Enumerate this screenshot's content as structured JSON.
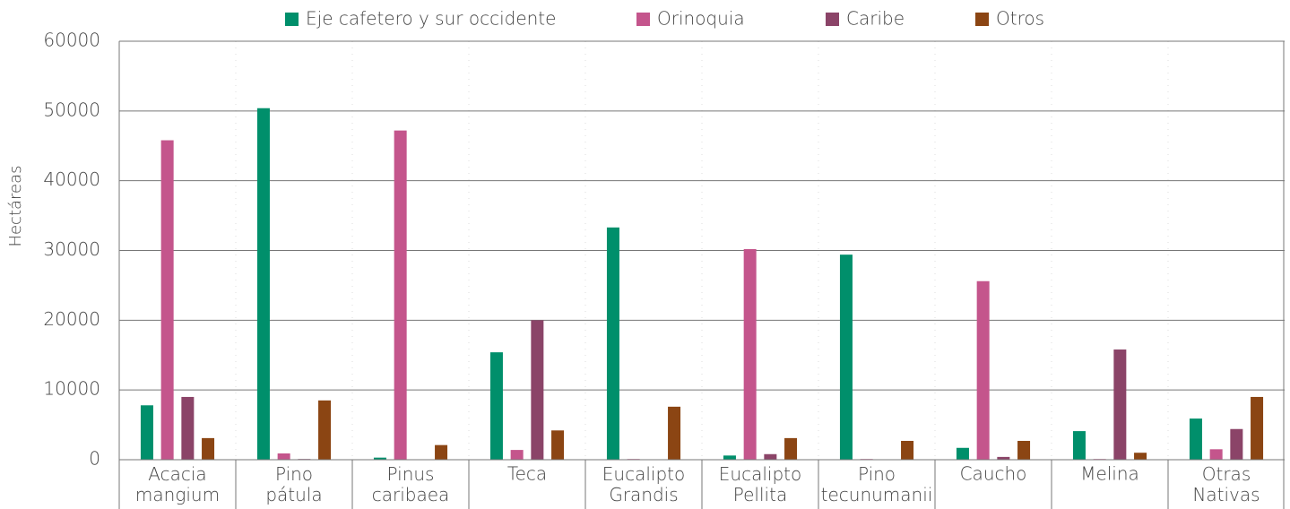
{
  "chart_data": {
    "type": "bar",
    "y_label": "Hectáreas",
    "categories": [
      "Acacia mangium",
      "Pino pátula",
      "Pinus caribaea",
      "Teca",
      "Eucalipto Grandis",
      "Eucalipto Pellita",
      "Pino tecunumanii",
      "Caucho",
      "Melina",
      "Otras Nativas"
    ],
    "series": [
      {
        "name": "Eje cafetero y sur occidente",
        "color": "#008f6b",
        "values": [
          7800,
          50400,
          300,
          15400,
          33300,
          600,
          29400,
          1700,
          4100,
          5900
        ]
      },
      {
        "name": "Orinoquia",
        "color": "#c4558c",
        "values": [
          45800,
          900,
          47200,
          1400,
          100,
          30200,
          100,
          25600,
          100,
          1500
        ]
      },
      {
        "name": "Caribe",
        "color": "#8b4468",
        "values": [
          9000,
          100,
          0,
          20000,
          0,
          800,
          0,
          400,
          15800,
          4400
        ]
      },
      {
        "name": "Otros",
        "color": "#8b4513",
        "values": [
          3100,
          8500,
          2100,
          4200,
          7600,
          3100,
          2700,
          2700,
          1000,
          9000
        ]
      }
    ],
    "ylim": [
      0,
      60000
    ],
    "yticks": [
      0,
      10000,
      20000,
      30000,
      40000,
      50000,
      60000
    ],
    "grid": true
  }
}
